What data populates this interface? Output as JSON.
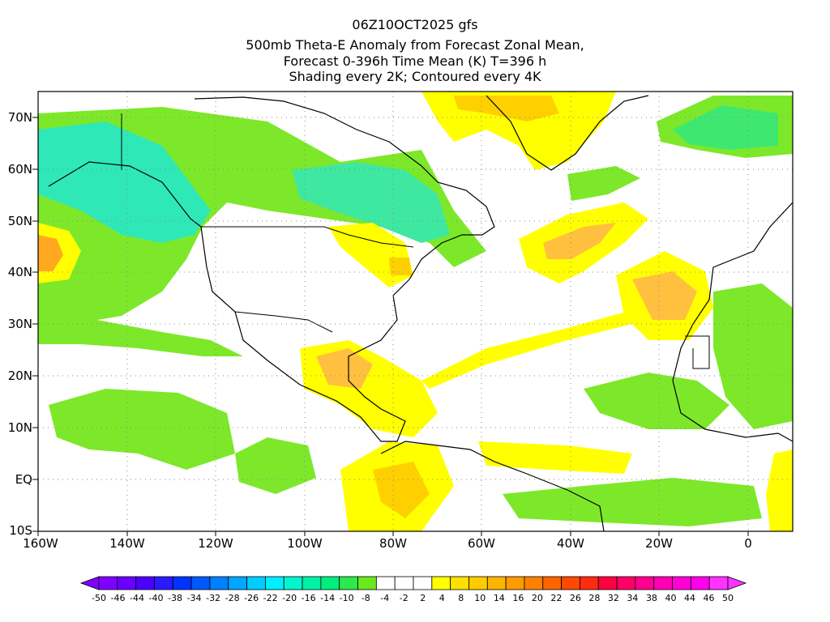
{
  "header": {
    "line1": "06Z10OCT2025 gfs",
    "line2": "500mb Theta-E Anomaly from Forecast Zonal Mean,",
    "line3": "Forecast 0-396h Time Mean (K) T=396 h",
    "line4": "Shading every 2K; Contoured every 4K"
  },
  "axes": {
    "lat_labels": [
      "70N",
      "60N",
      "50N",
      "40N",
      "30N",
      "20N",
      "10N",
      "EQ",
      "10S"
    ],
    "lon_labels": [
      "160W",
      "140W",
      "120W",
      "100W",
      "80W",
      "60W",
      "40W",
      "20W",
      "0"
    ]
  },
  "colorbar": {
    "labels": [
      "-50",
      "-46",
      "-44",
      "-40",
      "-38",
      "-34",
      "-32",
      "-28",
      "-26",
      "-22",
      "-20",
      "-16",
      "-14",
      "-10",
      "-8",
      "-4",
      "-2",
      "2",
      "4",
      "8",
      "10",
      "14",
      "16",
      "20",
      "22",
      "26",
      "28",
      "32",
      "34",
      "38",
      "40",
      "44",
      "46",
      "50"
    ],
    "colors": [
      "#7f00ff",
      "#6a00ff",
      "#4c00ff",
      "#2a1aff",
      "#0033ff",
      "#0058ff",
      "#0080ff",
      "#00a6ff",
      "#00ccff",
      "#00eeff",
      "#00f5d0",
      "#00f2a6",
      "#00ee7d",
      "#2ee84e",
      "#6ae81e",
      "#ffffff",
      "#ffffff",
      "#ffffff",
      "#ffff00",
      "#ffe000",
      "#ffcc00",
      "#ffb400",
      "#ff9a00",
      "#ff8000",
      "#ff6400",
      "#ff4800",
      "#ff2c10",
      "#ff0040",
      "#ff0066",
      "#ff0090",
      "#ff00b5",
      "#ff00d6",
      "#ff00ee",
      "#ff33ff"
    ]
  },
  "colors": {
    "green": "#7de82a",
    "green_dark": "#3ee870",
    "cyan": "#2ee8b8",
    "yellow": "#ffff00",
    "gold": "#ffd000",
    "orange": "#ffa820"
  }
}
